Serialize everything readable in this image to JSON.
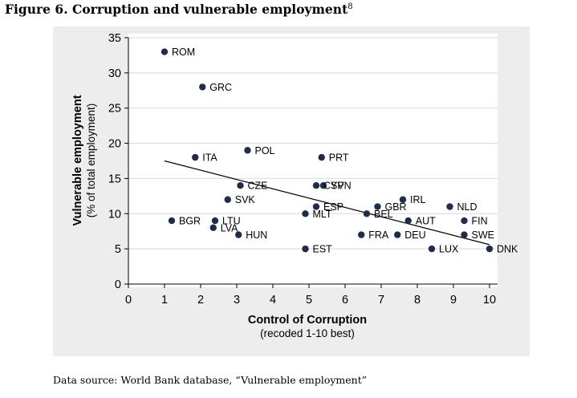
{
  "figure": {
    "title": "Figure 6. Corruption and vulnerable employment",
    "footnote_marker": "8",
    "source": "Data source: World Bank database, “Vulnerable employment”"
  },
  "chart_data": {
    "type": "scatter",
    "title": "",
    "xlabel": "Control of Corruption",
    "xlabel_sub": "(recoded 1-10 best)",
    "ylabel": "Vulnerable employment",
    "ylabel_sub": "(% of total employment)",
    "xlim": [
      0,
      10
    ],
    "ylim": [
      0,
      35
    ],
    "xticks": [
      0,
      1,
      2,
      3,
      4,
      5,
      6,
      7,
      8,
      9,
      10
    ],
    "yticks": [
      0,
      5,
      10,
      15,
      20,
      25,
      30,
      35
    ],
    "grid": "horizontal",
    "legend": "none",
    "marker_color": "#1f2d4a",
    "trendline": {
      "x": [
        1,
        10
      ],
      "y": [
        17.5,
        5.6
      ]
    },
    "points": [
      {
        "label": "ROM",
        "x": 1.0,
        "y": 33
      },
      {
        "label": "GRC",
        "x": 2.05,
        "y": 28
      },
      {
        "label": "ITA",
        "x": 1.85,
        "y": 18
      },
      {
        "label": "POL",
        "x": 3.3,
        "y": 19
      },
      {
        "label": "PRT",
        "x": 5.35,
        "y": 18
      },
      {
        "label": "CZE",
        "x": 3.1,
        "y": 14
      },
      {
        "label": "SVK",
        "x": 2.75,
        "y": 12
      },
      {
        "label": "CYP",
        "x": 5.2,
        "y": 14
      },
      {
        "label": "SVN",
        "x": 5.4,
        "y": 14
      },
      {
        "label": "ESP",
        "x": 5.2,
        "y": 11
      },
      {
        "label": "MLT",
        "x": 4.9,
        "y": 10
      },
      {
        "label": "BEL",
        "x": 6.6,
        "y": 10
      },
      {
        "label": "GBR",
        "x": 6.9,
        "y": 11
      },
      {
        "label": "IRL",
        "x": 7.6,
        "y": 12
      },
      {
        "label": "NLD",
        "x": 8.9,
        "y": 11
      },
      {
        "label": "AUT",
        "x": 7.75,
        "y": 9
      },
      {
        "label": "FIN",
        "x": 9.3,
        "y": 9
      },
      {
        "label": "BGR",
        "x": 1.2,
        "y": 9
      },
      {
        "label": "LTU",
        "x": 2.4,
        "y": 9
      },
      {
        "label": "LVA",
        "x": 2.35,
        "y": 8
      },
      {
        "label": "HUN",
        "x": 3.05,
        "y": 7
      },
      {
        "label": "FRA",
        "x": 6.45,
        "y": 7
      },
      {
        "label": "DEU",
        "x": 7.45,
        "y": 7
      },
      {
        "label": "SWE",
        "x": 9.3,
        "y": 7
      },
      {
        "label": "EST",
        "x": 4.9,
        "y": 5
      },
      {
        "label": "LUX",
        "x": 8.4,
        "y": 5
      },
      {
        "label": "DNK",
        "x": 10.0,
        "y": 5
      }
    ]
  }
}
